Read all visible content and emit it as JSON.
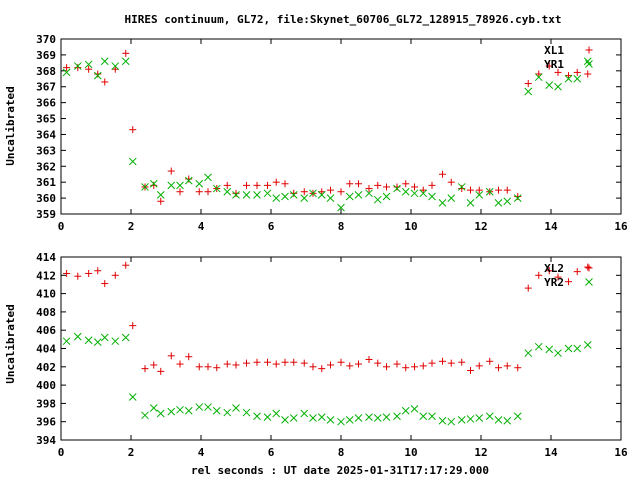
{
  "title": "HIRES continuum, GL72, file:Skynet_60706_GL72_128915_78926.cyb.txt",
  "xlabel": "rel seconds : UT date 2025-01-31T17:17:29.000",
  "colors": {
    "red": "#e00000",
    "green": "#00b000",
    "axis": "#000000"
  },
  "chart_data": [
    {
      "type": "scatter",
      "ylabel": "Uncalibrated",
      "xlim": [
        0,
        16
      ],
      "ylim": [
        359,
        370
      ],
      "xticks": [
        0,
        2,
        4,
        6,
        8,
        10,
        12,
        14,
        16
      ],
      "yticks": [
        359,
        360,
        361,
        362,
        363,
        364,
        365,
        366,
        367,
        368,
        369,
        370
      ],
      "legend_position": "top-right",
      "series": [
        {
          "name": "XL1",
          "marker": "plus",
          "color": "#e00000",
          "x": [
            0.16,
            0.48,
            0.79,
            1.05,
            1.25,
            1.55,
            1.85,
            2.05,
            2.4,
            2.65,
            2.85,
            3.15,
            3.4,
            3.65,
            3.95,
            4.2,
            4.45,
            4.75,
            5.0,
            5.3,
            5.6,
            5.9,
            6.15,
            6.4,
            6.65,
            6.95,
            7.2,
            7.45,
            7.7,
            8.0,
            8.25,
            8.5,
            8.8,
            9.05,
            9.3,
            9.6,
            9.85,
            10.1,
            10.35,
            10.6,
            10.9,
            11.15,
            11.45,
            11.7,
            11.95,
            12.25,
            12.5,
            12.75,
            13.05,
            13.35,
            13.65,
            13.95,
            14.2,
            14.5,
            14.75,
            15.05
          ],
          "y": [
            368.2,
            368.2,
            368.1,
            367.8,
            367.3,
            368.1,
            369.1,
            364.3,
            360.7,
            360.8,
            359.8,
            361.7,
            360.4,
            361.2,
            360.4,
            360.4,
            360.6,
            360.8,
            360.3,
            360.8,
            360.8,
            360.8,
            361.0,
            360.9,
            360.3,
            360.4,
            360.3,
            360.4,
            360.5,
            360.4,
            360.9,
            360.9,
            360.6,
            360.8,
            360.7,
            360.7,
            360.9,
            360.7,
            360.5,
            360.8,
            361.5,
            361.0,
            360.6,
            360.5,
            360.5,
            360.4,
            360.5,
            360.5,
            360.1,
            367.2,
            367.8,
            368.3,
            367.9,
            367.7,
            367.9,
            367.8
          ]
        },
        {
          "name": "YR1",
          "marker": "cross",
          "color": "#00b000",
          "x": [
            0.16,
            0.48,
            0.79,
            1.05,
            1.25,
            1.55,
            1.85,
            2.05,
            2.4,
            2.65,
            2.85,
            3.15,
            3.4,
            3.65,
            3.95,
            4.2,
            4.45,
            4.75,
            5.0,
            5.3,
            5.6,
            5.9,
            6.15,
            6.4,
            6.65,
            6.95,
            7.2,
            7.45,
            7.7,
            8.0,
            8.25,
            8.5,
            8.8,
            9.05,
            9.3,
            9.6,
            9.85,
            10.1,
            10.35,
            10.6,
            10.9,
            11.15,
            11.45,
            11.7,
            11.95,
            12.25,
            12.5,
            12.75,
            13.05,
            13.35,
            13.65,
            13.95,
            14.2,
            14.5,
            14.75,
            15.05
          ],
          "y": [
            367.9,
            368.3,
            368.4,
            367.7,
            368.6,
            368.3,
            368.6,
            362.3,
            360.7,
            360.9,
            360.2,
            360.8,
            360.8,
            361.1,
            360.9,
            361.3,
            360.6,
            360.4,
            360.2,
            360.2,
            360.2,
            360.3,
            360.0,
            360.1,
            360.2,
            360.0,
            360.3,
            360.2,
            360.0,
            359.4,
            360.1,
            360.2,
            360.3,
            359.9,
            360.1,
            360.6,
            360.4,
            360.3,
            360.3,
            360.1,
            359.7,
            360.0,
            360.7,
            359.7,
            360.2,
            360.4,
            359.7,
            359.8,
            360.0,
            366.7,
            367.6,
            367.1,
            367.0,
            367.5,
            367.5,
            368.6
          ]
        }
      ]
    },
    {
      "type": "scatter",
      "ylabel": "Uncalibrated",
      "xlim": [
        0,
        16
      ],
      "ylim": [
        394,
        414
      ],
      "xticks": [
        0,
        2,
        4,
        6,
        8,
        10,
        12,
        14,
        16
      ],
      "yticks": [
        394,
        396,
        398,
        400,
        402,
        404,
        406,
        408,
        410,
        412,
        414
      ],
      "legend_position": "top-right",
      "series": [
        {
          "name": "XL2",
          "marker": "plus",
          "color": "#e00000",
          "x": [
            0.16,
            0.48,
            0.79,
            1.05,
            1.25,
            1.55,
            1.85,
            2.05,
            2.4,
            2.65,
            2.85,
            3.15,
            3.4,
            3.65,
            3.95,
            4.2,
            4.45,
            4.75,
            5.0,
            5.3,
            5.6,
            5.9,
            6.15,
            6.4,
            6.65,
            6.95,
            7.2,
            7.45,
            7.7,
            8.0,
            8.25,
            8.5,
            8.8,
            9.05,
            9.3,
            9.6,
            9.85,
            10.1,
            10.35,
            10.6,
            10.9,
            11.15,
            11.45,
            11.7,
            11.95,
            12.25,
            12.5,
            12.75,
            13.05,
            13.35,
            13.65,
            13.95,
            14.2,
            14.5,
            14.75,
            15.05
          ],
          "y": [
            412.2,
            411.9,
            412.2,
            412.5,
            411.1,
            412.0,
            413.1,
            406.5,
            401.8,
            402.2,
            401.5,
            403.2,
            402.3,
            403.1,
            402.0,
            402.0,
            401.9,
            402.3,
            402.2,
            402.4,
            402.5,
            402.5,
            402.3,
            402.5,
            402.5,
            402.4,
            402.0,
            401.8,
            402.2,
            402.5,
            402.1,
            402.3,
            402.8,
            402.4,
            402.0,
            402.3,
            401.9,
            402.0,
            402.1,
            402.4,
            402.6,
            402.4,
            402.5,
            401.6,
            402.1,
            402.6,
            401.9,
            402.1,
            401.9,
            410.6,
            412.0,
            412.5,
            411.8,
            411.3,
            412.4,
            412.9
          ]
        },
        {
          "name": "YR2",
          "marker": "cross",
          "color": "#00b000",
          "x": [
            0.16,
            0.48,
            0.79,
            1.05,
            1.25,
            1.55,
            1.85,
            2.05,
            2.4,
            2.65,
            2.85,
            3.15,
            3.4,
            3.65,
            3.95,
            4.2,
            4.45,
            4.75,
            5.0,
            5.3,
            5.6,
            5.9,
            6.15,
            6.4,
            6.65,
            6.95,
            7.2,
            7.45,
            7.7,
            8.0,
            8.25,
            8.5,
            8.8,
            9.05,
            9.3,
            9.6,
            9.85,
            10.1,
            10.35,
            10.6,
            10.9,
            11.15,
            11.45,
            11.7,
            11.95,
            12.25,
            12.5,
            12.75,
            13.05,
            13.35,
            13.65,
            13.95,
            14.2,
            14.5,
            14.75,
            15.05
          ],
          "y": [
            404.8,
            405.3,
            404.9,
            404.7,
            405.2,
            404.8,
            405.2,
            398.7,
            396.7,
            397.5,
            396.9,
            397.1,
            397.3,
            397.2,
            397.6,
            397.6,
            397.2,
            397.0,
            397.5,
            397.0,
            396.6,
            396.5,
            396.9,
            396.2,
            396.4,
            396.9,
            396.4,
            396.5,
            396.2,
            396.0,
            396.2,
            396.4,
            396.5,
            396.4,
            396.5,
            396.6,
            397.2,
            397.4,
            396.6,
            396.6,
            396.1,
            396.0,
            396.2,
            396.3,
            396.4,
            396.6,
            396.2,
            396.1,
            396.6,
            403.5,
            404.2,
            403.9,
            403.5,
            404.0,
            404.0,
            404.4
          ]
        }
      ]
    }
  ]
}
